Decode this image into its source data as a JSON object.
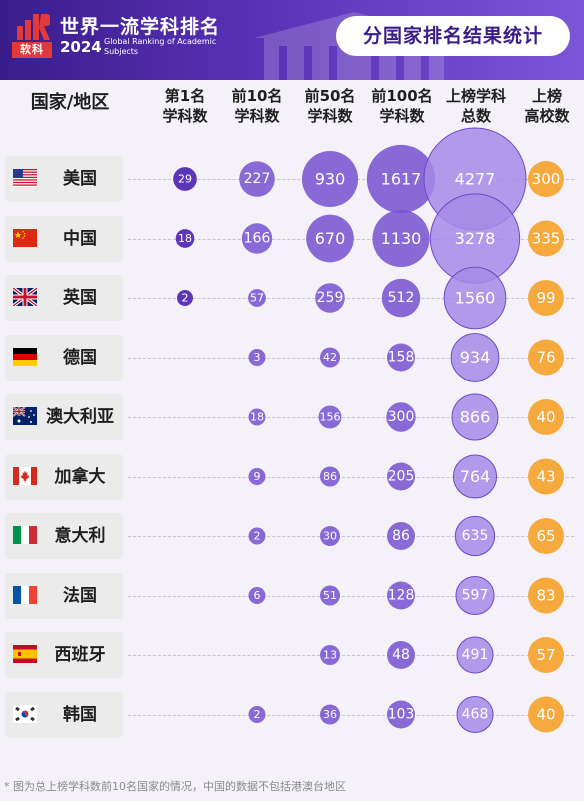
{
  "header": {
    "logo_text": "软科",
    "brand_title": "世界一流学科排名",
    "brand_year": "2024",
    "brand_subtitle": "Global Ranking of Academic Subjects",
    "page_title": "分国家排名结果统计"
  },
  "colors": {
    "banner_start": "#3a1d8a",
    "banner_end": "#7d55d8",
    "bubble_purple": "#7a55d0",
    "bubble_purple_light": "#a58be6",
    "bubble_orange": "#f6a93c",
    "logo_red": "#e23a3a"
  },
  "chart_data": {
    "type": "bubble-table",
    "columns": [
      {
        "key": "country",
        "label": "国家/地区"
      },
      {
        "key": "first",
        "label": "第1名\n学科数"
      },
      {
        "key": "top10",
        "label": "前10名\n学科数"
      },
      {
        "key": "top50",
        "label": "前50名\n学科数"
      },
      {
        "key": "top100",
        "label": "前100名\n学科数"
      },
      {
        "key": "listed",
        "label": "上榜学科\n总数"
      },
      {
        "key": "universities",
        "label": "上榜\n高校数"
      }
    ],
    "rows": [
      {
        "country": "美国",
        "flag": "us-flag-icon",
        "first": 29,
        "top10": 227,
        "top50": 930,
        "top100": 1617,
        "listed": 4277,
        "universities": 300
      },
      {
        "country": "中国",
        "flag": "cn-flag-icon",
        "first": 18,
        "top10": 166,
        "top50": 670,
        "top100": 1130,
        "listed": 3278,
        "universities": 335
      },
      {
        "country": "英国",
        "flag": "gb-flag-icon",
        "first": 2,
        "top10": 57,
        "top50": 259,
        "top100": 512,
        "listed": 1560,
        "universities": 99
      },
      {
        "country": "德国",
        "flag": "de-flag-icon",
        "first": null,
        "top10": 3,
        "top50": 42,
        "top100": 158,
        "listed": 934,
        "universities": 76
      },
      {
        "country": "澳大利亚",
        "flag": "au-flag-icon",
        "first": null,
        "top10": 18,
        "top50": 156,
        "top100": 300,
        "listed": 866,
        "universities": 40
      },
      {
        "country": "加拿大",
        "flag": "ca-flag-icon",
        "first": null,
        "top10": 9,
        "top50": 86,
        "top100": 205,
        "listed": 764,
        "universities": 43
      },
      {
        "country": "意大利",
        "flag": "it-flag-icon",
        "first": null,
        "top10": 2,
        "top50": 30,
        "top100": 86,
        "listed": 635,
        "universities": 65
      },
      {
        "country": "法国",
        "flag": "fr-flag-icon",
        "first": null,
        "top10": 6,
        "top50": 51,
        "top100": 128,
        "listed": 597,
        "universities": 83
      },
      {
        "country": "西班牙",
        "flag": "es-flag-icon",
        "first": null,
        "top10": null,
        "top50": 13,
        "top100": 48,
        "listed": 491,
        "universities": 57
      },
      {
        "country": "韩国",
        "flag": "kr-flag-icon",
        "first": null,
        "top10": 2,
        "top50": 36,
        "top100": 103,
        "listed": 468,
        "universities": 40
      }
    ]
  },
  "footnote": "* 图为总上榜学科数前10名国家的情况，中国的数据不包括港澳台地区"
}
